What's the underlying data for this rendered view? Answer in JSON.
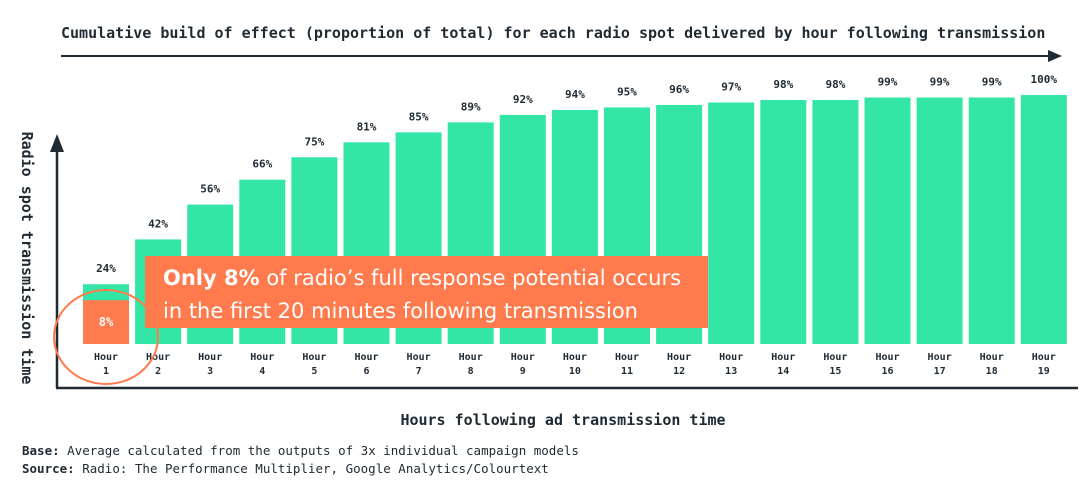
{
  "title": "Cumulative build of effect (proportion of total) for each radio spot delivered by hour following transmission",
  "chart_data": {
    "type": "bar",
    "categories": [
      "1",
      "2",
      "3",
      "4",
      "5",
      "6",
      "7",
      "8",
      "9",
      "10",
      "11",
      "12",
      "13",
      "14",
      "15",
      "16",
      "17",
      "18",
      "19"
    ],
    "category_prefix": "Hour",
    "values": [
      24,
      42,
      56,
      66,
      75,
      81,
      85,
      89,
      92,
      94,
      95,
      96,
      97,
      98,
      98,
      99,
      99,
      99,
      100
    ],
    "value_labels": [
      "24%",
      "42%",
      "56%",
      "66%",
      "75%",
      "81%",
      "85%",
      "89%",
      "92%",
      "94%",
      "95%",
      "96%",
      "97%",
      "98%",
      "98%",
      "99%",
      "99%",
      "99%",
      "100%"
    ],
    "highlight": {
      "category": "1",
      "value": 8,
      "label": "8%"
    },
    "xlabel": "Hours following ad transmission time",
    "ylabel": "Radio spot transmission time",
    "ylim": [
      0,
      100
    ],
    "colors": {
      "bar": "#33e6a6",
      "highlight": "#ff7a4d",
      "axis": "#1f2a33"
    }
  },
  "callout": {
    "bold": "Only 8%",
    "line1_rest": " of radio’s full response potential occurs",
    "line2": "in the first 20 minutes following transmission"
  },
  "footer": {
    "base_label": "Base:",
    "base_text": " Average calculated from the outputs of 3x individual campaign models",
    "source_label": "Source:",
    "source_text": " Radio: The Performance Multiplier, Google Analytics/Colourtext"
  }
}
